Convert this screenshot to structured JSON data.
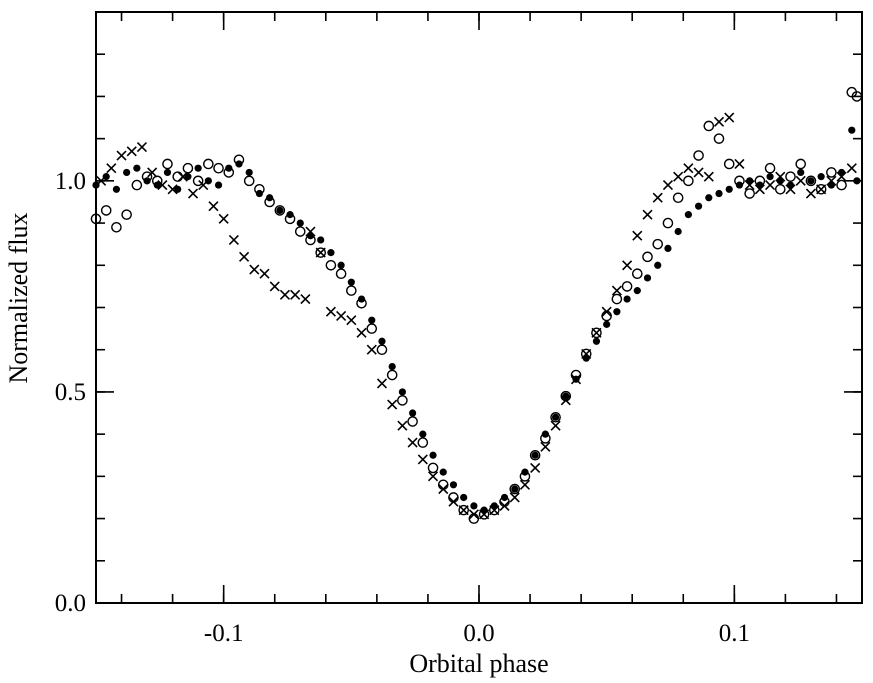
{
  "chart_data": {
    "type": "scatter",
    "xlabel": "Orbital phase",
    "ylabel": "Normalized flux",
    "xlim": [
      -0.15,
      0.15
    ],
    "ylim": [
      0.0,
      1.4
    ],
    "x_ticks": [
      {
        "value": -0.1,
        "label": "-0.1"
      },
      {
        "value": 0.0,
        "label": "0.0"
      },
      {
        "value": 0.1,
        "label": "0.1"
      }
    ],
    "y_ticks": [
      {
        "value": 0.0,
        "label": "0.0"
      },
      {
        "value": 0.5,
        "label": "0.5"
      },
      {
        "value": 1.0,
        "label": "1.0"
      }
    ],
    "x_minor_step": 0.02,
    "y_minor_step": 0.1,
    "grid": false,
    "legend": "none",
    "series": [
      {
        "marker": "filled-circle",
        "color": "#000000",
        "points": [
          [
            -0.15,
            0.99
          ],
          [
            -0.146,
            1.01
          ],
          [
            -0.142,
            0.98
          ],
          [
            -0.138,
            1.02
          ],
          [
            -0.134,
            1.03
          ],
          [
            -0.13,
            1.0
          ],
          [
            -0.126,
            0.99
          ],
          [
            -0.122,
            1.02
          ],
          [
            -0.118,
            0.98
          ],
          [
            -0.114,
            1.01
          ],
          [
            -0.11,
            1.03
          ],
          [
            -0.106,
            1.0
          ],
          [
            -0.102,
            0.99
          ],
          [
            -0.098,
            1.03
          ],
          [
            -0.094,
            1.04
          ],
          [
            -0.09,
            1.02
          ],
          [
            -0.086,
            0.97
          ],
          [
            -0.082,
            0.96
          ],
          [
            -0.078,
            0.93
          ],
          [
            -0.074,
            0.92
          ],
          [
            -0.07,
            0.9
          ],
          [
            -0.066,
            0.87
          ],
          [
            -0.062,
            0.86
          ],
          [
            -0.058,
            0.83
          ],
          [
            -0.054,
            0.8
          ],
          [
            -0.05,
            0.76
          ],
          [
            -0.046,
            0.72
          ],
          [
            -0.042,
            0.67
          ],
          [
            -0.038,
            0.62
          ],
          [
            -0.034,
            0.56
          ],
          [
            -0.03,
            0.5
          ],
          [
            -0.026,
            0.45
          ],
          [
            -0.022,
            0.4
          ],
          [
            -0.018,
            0.35
          ],
          [
            -0.014,
            0.31
          ],
          [
            -0.01,
            0.28
          ],
          [
            -0.006,
            0.25
          ],
          [
            -0.002,
            0.23
          ],
          [
            0.002,
            0.22
          ],
          [
            0.006,
            0.23
          ],
          [
            0.01,
            0.25
          ],
          [
            0.014,
            0.27
          ],
          [
            0.018,
            0.31
          ],
          [
            0.022,
            0.35
          ],
          [
            0.026,
            0.4
          ],
          [
            0.03,
            0.44
          ],
          [
            0.034,
            0.49
          ],
          [
            0.038,
            0.53
          ],
          [
            0.042,
            0.58
          ],
          [
            0.046,
            0.62
          ],
          [
            0.05,
            0.66
          ],
          [
            0.054,
            0.69
          ],
          [
            0.058,
            0.72
          ],
          [
            0.062,
            0.74
          ],
          [
            0.066,
            0.77
          ],
          [
            0.07,
            0.8
          ],
          [
            0.074,
            0.84
          ],
          [
            0.078,
            0.88
          ],
          [
            0.082,
            0.92
          ],
          [
            0.086,
            0.94
          ],
          [
            0.09,
            0.96
          ],
          [
            0.094,
            0.97
          ],
          [
            0.098,
            0.98
          ],
          [
            0.102,
            0.99
          ],
          [
            0.106,
            1.0
          ],
          [
            0.11,
            0.99
          ],
          [
            0.114,
            1.01
          ],
          [
            0.118,
            1.0
          ],
          [
            0.122,
            0.99
          ],
          [
            0.126,
            1.02
          ],
          [
            0.13,
            1.0
          ],
          [
            0.134,
            1.01
          ],
          [
            0.138,
            0.99
          ],
          [
            0.142,
            1.02
          ],
          [
            0.146,
            1.12
          ],
          [
            0.148,
            1.0
          ]
        ]
      },
      {
        "marker": "open-circle",
        "color": "#000000",
        "points": [
          [
            -0.15,
            0.91
          ],
          [
            -0.146,
            0.93
          ],
          [
            -0.142,
            0.89
          ],
          [
            -0.138,
            0.92
          ],
          [
            -0.134,
            0.99
          ],
          [
            -0.13,
            1.01
          ],
          [
            -0.126,
            1.0
          ],
          [
            -0.122,
            1.04
          ],
          [
            -0.118,
            1.01
          ],
          [
            -0.114,
            1.03
          ],
          [
            -0.11,
            1.0
          ],
          [
            -0.106,
            1.04
          ],
          [
            -0.102,
            1.03
          ],
          [
            -0.098,
            1.02
          ],
          [
            -0.094,
            1.05
          ],
          [
            -0.09,
            1.0
          ],
          [
            -0.086,
            0.98
          ],
          [
            -0.082,
            0.95
          ],
          [
            -0.078,
            0.93
          ],
          [
            -0.074,
            0.91
          ],
          [
            -0.07,
            0.88
          ],
          [
            -0.066,
            0.86
          ],
          [
            -0.062,
            0.83
          ],
          [
            -0.058,
            0.8
          ],
          [
            -0.054,
            0.78
          ],
          [
            -0.05,
            0.74
          ],
          [
            -0.046,
            0.71
          ],
          [
            -0.042,
            0.65
          ],
          [
            -0.038,
            0.6
          ],
          [
            -0.034,
            0.54
          ],
          [
            -0.03,
            0.48
          ],
          [
            -0.026,
            0.43
          ],
          [
            -0.022,
            0.38
          ],
          [
            -0.018,
            0.32
          ],
          [
            -0.014,
            0.28
          ],
          [
            -0.01,
            0.25
          ],
          [
            -0.006,
            0.22
          ],
          [
            -0.002,
            0.2
          ],
          [
            0.002,
            0.21
          ],
          [
            0.006,
            0.22
          ],
          [
            0.01,
            0.24
          ],
          [
            0.014,
            0.27
          ],
          [
            0.018,
            0.3
          ],
          [
            0.022,
            0.35
          ],
          [
            0.026,
            0.39
          ],
          [
            0.03,
            0.44
          ],
          [
            0.034,
            0.49
          ],
          [
            0.038,
            0.54
          ],
          [
            0.042,
            0.59
          ],
          [
            0.046,
            0.64
          ],
          [
            0.05,
            0.68
          ],
          [
            0.054,
            0.72
          ],
          [
            0.058,
            0.75
          ],
          [
            0.062,
            0.78
          ],
          [
            0.066,
            0.82
          ],
          [
            0.07,
            0.85
          ],
          [
            0.074,
            0.9
          ],
          [
            0.078,
            0.96
          ],
          [
            0.082,
            1.0
          ],
          [
            0.086,
            1.06
          ],
          [
            0.09,
            1.13
          ],
          [
            0.094,
            1.1
          ],
          [
            0.098,
            1.04
          ],
          [
            0.102,
            1.0
          ],
          [
            0.106,
            0.97
          ],
          [
            0.11,
            1.0
          ],
          [
            0.114,
            1.03
          ],
          [
            0.118,
            0.98
          ],
          [
            0.122,
            1.01
          ],
          [
            0.126,
            1.04
          ],
          [
            0.13,
            1.0
          ],
          [
            0.134,
            0.98
          ],
          [
            0.138,
            1.02
          ],
          [
            0.142,
            0.99
          ],
          [
            0.146,
            1.21
          ],
          [
            0.148,
            1.2
          ]
        ]
      },
      {
        "marker": "cross",
        "color": "#000000",
        "points": [
          [
            -0.148,
            1.0
          ],
          [
            -0.144,
            1.03
          ],
          [
            -0.14,
            1.06
          ],
          [
            -0.136,
            1.07
          ],
          [
            -0.132,
            1.08
          ],
          [
            -0.128,
            1.02
          ],
          [
            -0.124,
            0.99
          ],
          [
            -0.12,
            0.98
          ],
          [
            -0.116,
            1.01
          ],
          [
            -0.112,
            0.97
          ],
          [
            -0.108,
            0.99
          ],
          [
            -0.104,
            0.94
          ],
          [
            -0.1,
            0.91
          ],
          [
            -0.096,
            0.86
          ],
          [
            -0.092,
            0.82
          ],
          [
            -0.088,
            0.79
          ],
          [
            -0.084,
            0.78
          ],
          [
            -0.08,
            0.75
          ],
          [
            -0.076,
            0.73
          ],
          [
            -0.072,
            0.73
          ],
          [
            -0.068,
            0.72
          ],
          [
            -0.066,
            0.88
          ],
          [
            -0.062,
            0.83
          ],
          [
            -0.058,
            0.69
          ],
          [
            -0.054,
            0.68
          ],
          [
            -0.05,
            0.67
          ],
          [
            -0.046,
            0.64
          ],
          [
            -0.042,
            0.6
          ],
          [
            -0.038,
            0.52
          ],
          [
            -0.034,
            0.47
          ],
          [
            -0.03,
            0.42
          ],
          [
            -0.026,
            0.38
          ],
          [
            -0.022,
            0.34
          ],
          [
            -0.018,
            0.3
          ],
          [
            -0.014,
            0.27
          ],
          [
            -0.01,
            0.24
          ],
          [
            -0.006,
            0.22
          ],
          [
            -0.002,
            0.21
          ],
          [
            0.002,
            0.21
          ],
          [
            0.006,
            0.22
          ],
          [
            0.01,
            0.23
          ],
          [
            0.014,
            0.25
          ],
          [
            0.018,
            0.28
          ],
          [
            0.022,
            0.32
          ],
          [
            0.026,
            0.37
          ],
          [
            0.03,
            0.42
          ],
          [
            0.034,
            0.48
          ],
          [
            0.038,
            0.53
          ],
          [
            0.042,
            0.59
          ],
          [
            0.046,
            0.64
          ],
          [
            0.05,
            0.69
          ],
          [
            0.054,
            0.74
          ],
          [
            0.058,
            0.8
          ],
          [
            0.062,
            0.87
          ],
          [
            0.066,
            0.92
          ],
          [
            0.07,
            0.96
          ],
          [
            0.074,
            0.99
          ],
          [
            0.078,
            1.01
          ],
          [
            0.082,
            1.03
          ],
          [
            0.086,
            1.02
          ],
          [
            0.09,
            1.01
          ],
          [
            0.094,
            1.14
          ],
          [
            0.098,
            1.15
          ],
          [
            0.102,
            1.04
          ],
          [
            0.106,
            0.99
          ],
          [
            0.11,
            0.98
          ],
          [
            0.114,
            0.99
          ],
          [
            0.118,
            1.01
          ],
          [
            0.122,
            0.98
          ],
          [
            0.126,
            1.0
          ],
          [
            0.13,
            0.97
          ],
          [
            0.134,
            0.98
          ],
          [
            0.138,
            1.0
          ],
          [
            0.142,
            1.01
          ],
          [
            0.146,
            1.03
          ]
        ]
      }
    ]
  }
}
